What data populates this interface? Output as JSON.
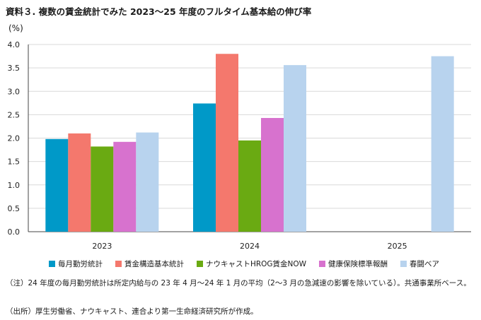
{
  "title": "資料３. 複数の賃金統計でみた 2023〜25 年度のフルタイム基本給の伸び率",
  "chart_data": {
    "type": "bar",
    "title": "資料３. 複数の賃金統計でみた 2023〜25 年度のフルタイム基本給の伸び率",
    "unit_label": "(%)",
    "xlabel": "",
    "ylabel": "(%)",
    "categories": [
      "2023",
      "2024",
      "2025"
    ],
    "ylim": [
      0,
      4.0
    ],
    "yticks": [
      "0.0",
      "0.5",
      "1.0",
      "1.5",
      "2.0",
      "2.5",
      "3.0",
      "3.5",
      "4.0"
    ],
    "grid": true,
    "legend_position": "bottom",
    "series": [
      {
        "name": "毎月勤労統計",
        "color": "#0099c8",
        "values": [
          1.98,
          2.74,
          null
        ]
      },
      {
        "name": "賃金構造基本統計",
        "color": "#f4786d",
        "values": [
          2.1,
          3.8,
          null
        ]
      },
      {
        "name": "ナウキャストHROG賃金NOW",
        "color": "#6aaa12",
        "values": [
          1.82,
          1.95,
          null
        ]
      },
      {
        "name": "健康保険標準報酬",
        "color": "#d772ce",
        "values": [
          1.92,
          2.43,
          null
        ]
      },
      {
        "name": "春闘ベア",
        "color": "#b8d3ee",
        "values": [
          2.12,
          3.56,
          3.75
        ]
      }
    ]
  },
  "notes": {
    "note1": "（注）24 年度の毎月勤労統計は所定内給与の 23 年 4 月〜24 年 1 月の平均（2〜3 月の急減速の影響を除いている）。共通事業所ベース。",
    "note2": "（出所）厚生労働省、ナウキャスト、連合より第一生命経済研究所が作成。"
  }
}
